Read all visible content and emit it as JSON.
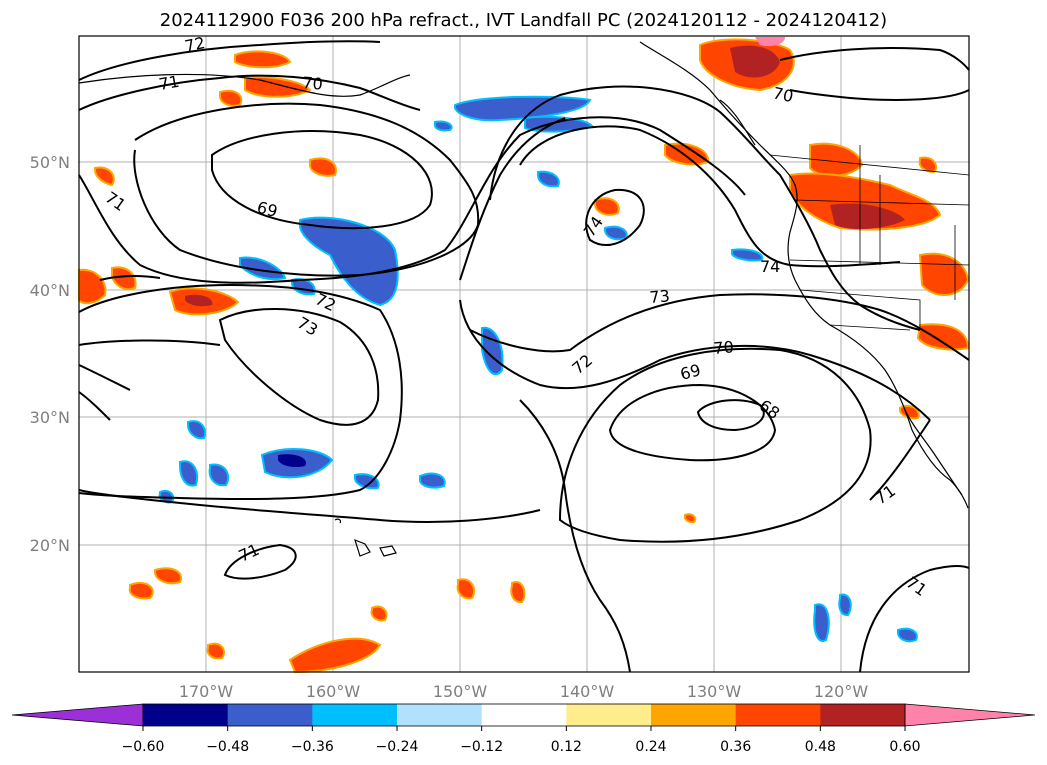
{
  "figure": {
    "title": "2024112900 F036 200 hPa refract., IVT Landfall PC (2024120112 - 2024120412)"
  },
  "map": {
    "lat_labels": [
      "50°N",
      "40°N",
      "30°N",
      "20°N"
    ],
    "lon_labels": [
      "170°W",
      "160°W",
      "150°W",
      "140°W",
      "130°W",
      "120°W"
    ],
    "contour_labels": [
      "72",
      "71",
      "70",
      "70",
      "71",
      "69",
      "72",
      "73",
      "74",
      "74",
      "73",
      "72",
      "70",
      "69",
      "68",
      "71",
      "71",
      "71"
    ],
    "colors": {
      "coast": "#000000",
      "grid": "#b0b0b0",
      "contour": "#000000"
    }
  },
  "colorbar": {
    "ticks": [
      "−0.60",
      "−0.48",
      "−0.36",
      "−0.24",
      "−0.12",
      "0.12",
      "0.24",
      "0.36",
      "0.48",
      "0.60"
    ],
    "colors": [
      "#9b30d9",
      "#00008b",
      "#3a5fcd",
      "#00bfff",
      "#b0e2ff",
      "#ffffff",
      "#ffec8b",
      "#ffa500",
      "#ff4500",
      "#b22222",
      "#ff82ab"
    ],
    "extend": "both"
  }
}
